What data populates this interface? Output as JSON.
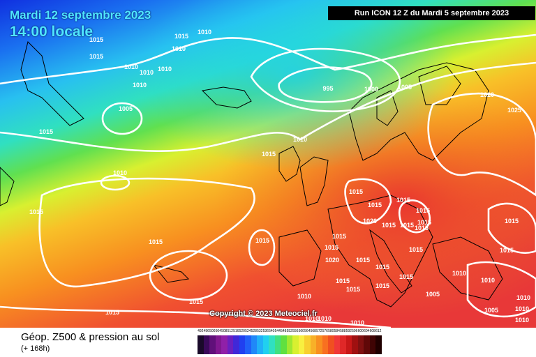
{
  "map": {
    "title_line1": "Mardi 12 septembre 2023",
    "title_line2": "14:00 locale",
    "run_info": "Run ICON 12 Z du Mardi 5 septembre 2023",
    "copyright": "Copyright © 2023 Meteociel.fr",
    "product_title": "Géop. Z500 & pression au sol",
    "product_subtitle": "(+ 168h)",
    "pressure_labels": [
      "1015",
      "1010",
      "1015",
      "1010",
      "1015",
      "1010",
      "1010",
      "1010",
      "1010",
      "1005",
      "995",
      "1000",
      "1005",
      "1020",
      "1025",
      "1015",
      "1010",
      "1015",
      "1010",
      "1015",
      "1015",
      "1015",
      "1015",
      "1015",
      "1015",
      "1020",
      "1015",
      "1015",
      "1015",
      "1015",
      "1015",
      "1015",
      "1015",
      "1020",
      "1015",
      "1015",
      "1015",
      "1015",
      "1015",
      "1015",
      "1015",
      "1015",
      "1015",
      "1010",
      "1010",
      "1010",
      "1005",
      "1010",
      "1010",
      "1010",
      "1010",
      "1010",
      "1015",
      "1015",
      "1005",
      "1010"
    ],
    "colors": {
      "low": "#1040e8",
      "mid_blue": "#20c8f0",
      "green": "#60d860",
      "yellow": "#f0f040",
      "orange": "#f89020",
      "red": "#f04040",
      "isobar": "#ffffff",
      "coast": "#000000"
    }
  },
  "legend": {
    "values": [
      "492",
      "496",
      "500",
      "504",
      "508",
      "512",
      "516",
      "520",
      "524",
      "528",
      "532",
      "536",
      "540",
      "544",
      "548",
      "552",
      "556",
      "560",
      "564",
      "568",
      "572",
      "576",
      "580",
      "584",
      "588",
      "592",
      "596",
      "600",
      "604",
      "608",
      "612"
    ],
    "colors": [
      "#1a0a2a",
      "#3a0a5a",
      "#60107a",
      "#801890",
      "#9020a8",
      "#6a20c0",
      "#4028d8",
      "#2040f0",
      "#2060f8",
      "#2088f8",
      "#20b0f8",
      "#20d0f0",
      "#30e0c0",
      "#40e080",
      "#60e040",
      "#a0e830",
      "#d8f030",
      "#f8f040",
      "#f8d030",
      "#f8b028",
      "#f89020",
      "#f87020",
      "#f05020",
      "#f03838",
      "#e02828",
      "#c81818",
      "#a01010",
      "#801010",
      "#600808",
      "#400404",
      "#200000"
    ]
  }
}
